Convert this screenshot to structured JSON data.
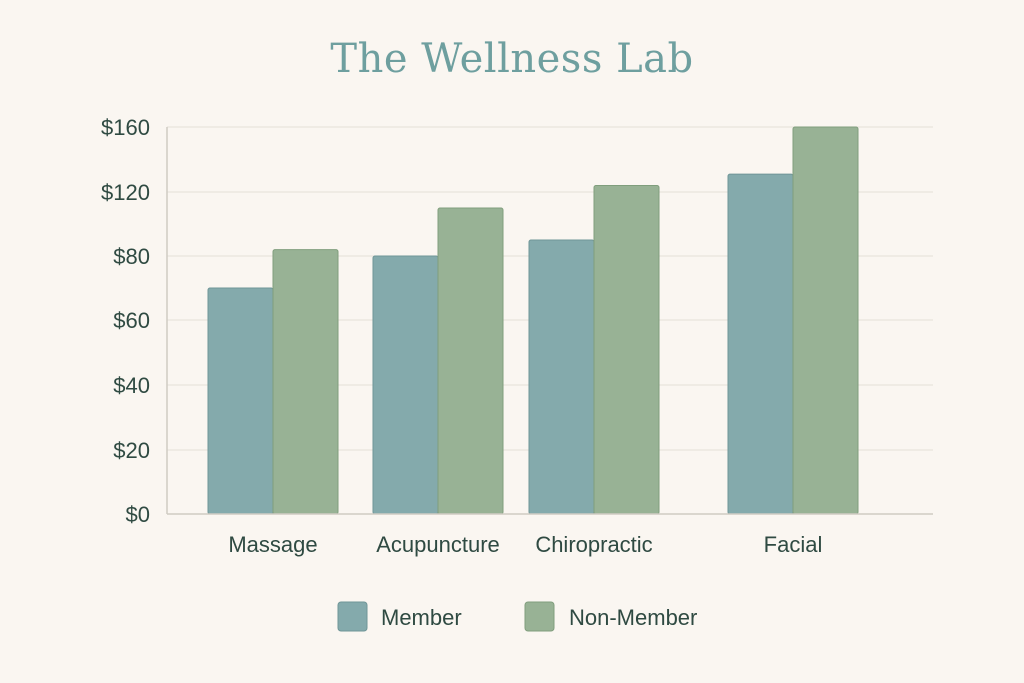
{
  "chart_data": {
    "type": "bar",
    "title": "The Wellness Lab",
    "xlabel": "",
    "ylabel": "",
    "categories": [
      "Massage",
      "Acupuncture",
      "Chiropractic",
      "Facial"
    ],
    "series": [
      {
        "name": "Member",
        "values": [
          70,
          80,
          90,
          131
        ],
        "color": "#84aaac"
      },
      {
        "name": "Non-Member",
        "values": [
          84,
          110,
          124,
          160
        ],
        "color": "#98b295"
      }
    ],
    "y_ticks": [
      "$0",
      "$20",
      "$40",
      "$60",
      "$80",
      "$120",
      "$160"
    ],
    "grid": true,
    "legend_position": "bottom-center"
  }
}
